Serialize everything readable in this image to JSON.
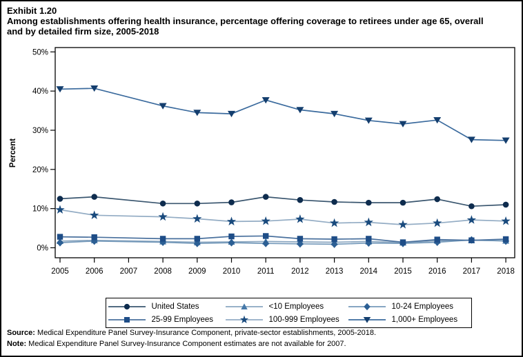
{
  "page": {
    "exhibit_label": "Exhibit 1.20",
    "title_lines": [
      "Among establishments offering health insurance, percentage offering coverage to retirees under age 65, overall",
      "and by detailed firm size, 2005-2018"
    ],
    "source_prefix": "Source:",
    "source_text": " Medical Expenditure Panel Survey-Insurance Component, private-sector establishments, 2005-2018.",
    "note_prefix": "Note:",
    "note_text": " Medical Expenditure Panel Survey-Insurance Component estimates are not available for 2007."
  },
  "chart_data": {
    "type": "line",
    "title": "Percentage offering coverage to retirees under age 65 by detailed firm size, 2005-2018",
    "xlabel": "",
    "ylabel": "Percent",
    "ylim": [
      0,
      50
    ],
    "yticks": [
      0,
      10,
      20,
      30,
      40,
      50
    ],
    "ytick_suffix": "%",
    "grid": false,
    "legend_position": "bottom-center",
    "x": [
      2005,
      2006,
      2007,
      2008,
      2009,
      2010,
      2011,
      2012,
      2013,
      2014,
      2015,
      2016,
      2017,
      2018
    ],
    "missing_note": "no data for 2007",
    "series": [
      {
        "name": "United States",
        "marker": "circle",
        "marker_color": "#0e2c4e",
        "line_color": "#3a566f",
        "values": [
          12.5,
          13.0,
          null,
          11.3,
          11.3,
          11.6,
          13.0,
          12.2,
          11.7,
          11.5,
          11.5,
          12.4,
          10.6,
          11.0
        ]
      },
      {
        "name": "<10 Employees",
        "marker": "triangle-up",
        "marker_color": "#4679a9",
        "line_color": "#8aa6c0",
        "values": [
          1.7,
          1.9,
          null,
          1.6,
          1.4,
          1.5,
          1.6,
          1.5,
          1.4,
          1.6,
          1.3,
          1.8,
          1.9,
          1.8
        ]
      },
      {
        "name": "10-24 Employees",
        "marker": "diamond",
        "marker_color": "#2c5f94",
        "line_color": "#7499ba",
        "values": [
          1.3,
          1.7,
          null,
          1.4,
          1.1,
          1.3,
          1.1,
          1.0,
          0.9,
          1.2,
          1.1,
          1.4,
          2.0,
          1.7
        ]
      },
      {
        "name": "25-99 Employees",
        "marker": "square",
        "marker_color": "#1e4d87",
        "line_color": "#49709d",
        "values": [
          2.8,
          2.7,
          null,
          2.3,
          2.3,
          2.9,
          3.0,
          2.3,
          2.2,
          2.3,
          1.4,
          2.1,
          1.9,
          2.2
        ]
      },
      {
        "name": "100-999 Employees",
        "marker": "star",
        "marker_color": "#194a7d",
        "line_color": "#93acc4",
        "values": [
          9.7,
          8.3,
          null,
          7.9,
          7.4,
          6.7,
          6.8,
          7.3,
          6.3,
          6.5,
          5.9,
          6.3,
          7.1,
          6.8
        ]
      },
      {
        "name": "1,000+ Employees",
        "marker": "triangle-down",
        "marker_color": "#143e6e",
        "line_color": "#3a6a9d",
        "values": [
          40.5,
          40.7,
          null,
          36.2,
          34.5,
          34.2,
          37.7,
          35.2,
          34.2,
          32.5,
          31.6,
          32.6,
          27.6,
          27.4
        ]
      }
    ]
  }
}
